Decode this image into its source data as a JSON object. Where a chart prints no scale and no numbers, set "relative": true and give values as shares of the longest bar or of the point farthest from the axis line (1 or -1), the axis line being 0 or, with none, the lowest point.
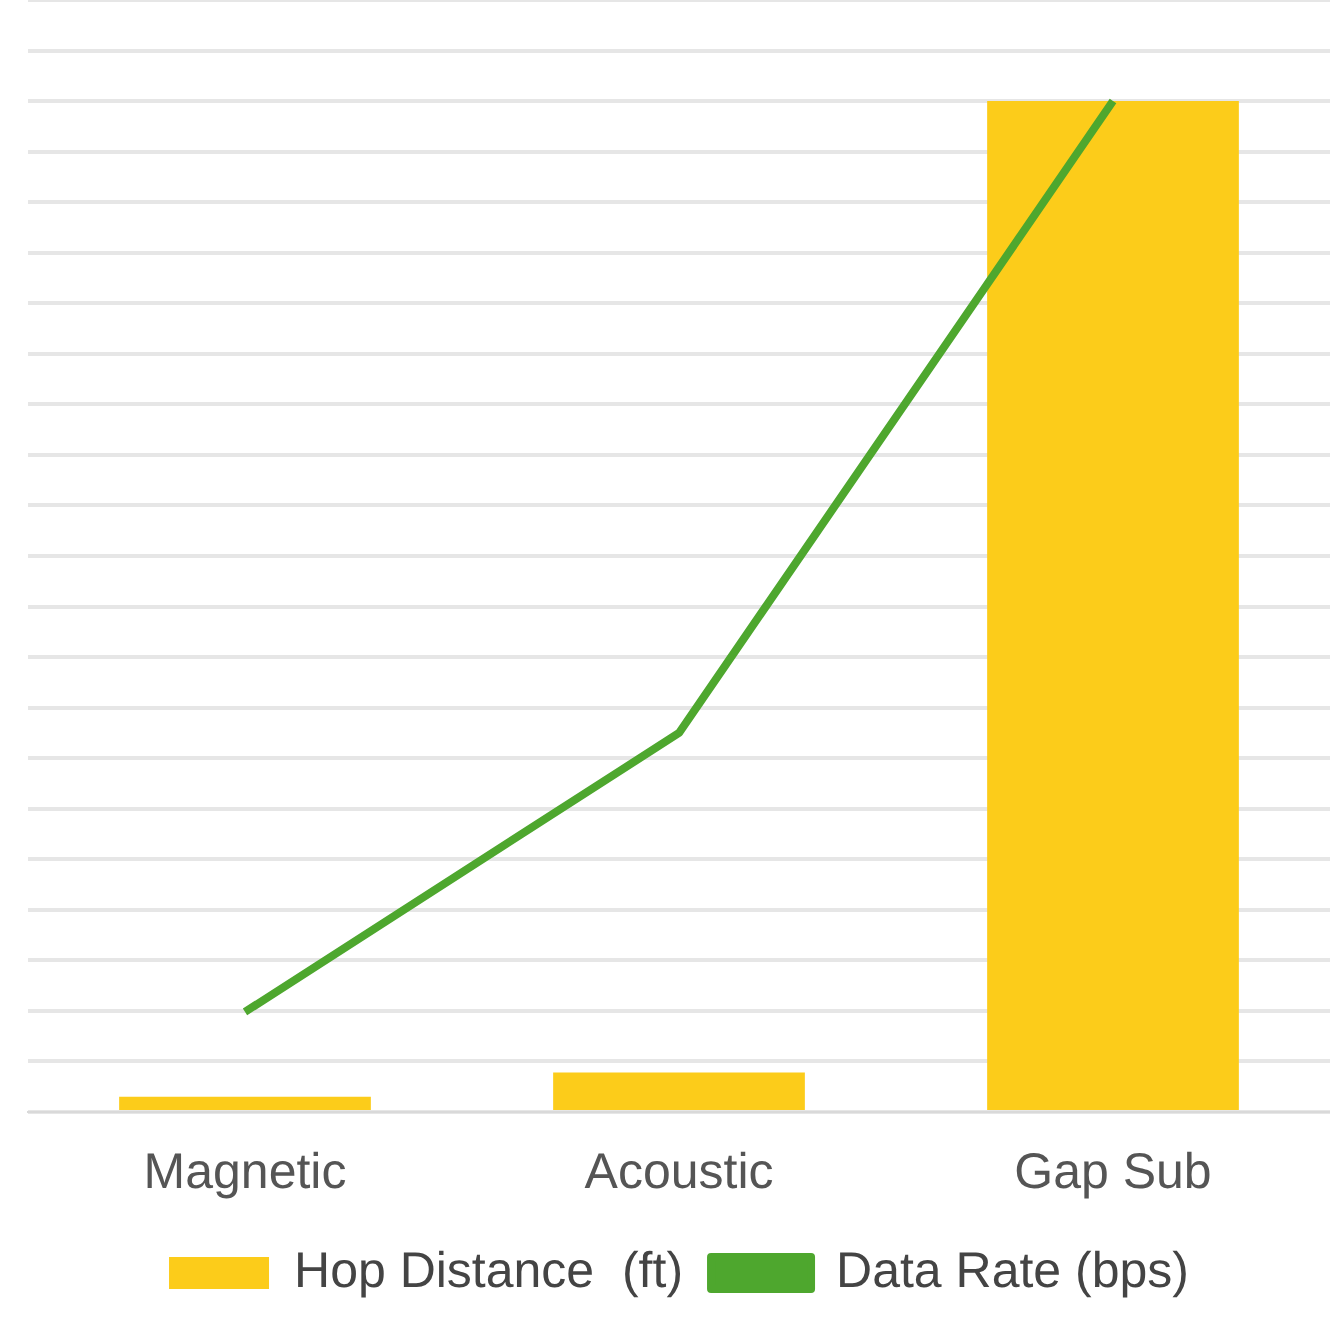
{
  "chart_data": {
    "type": "bar",
    "relative": true,
    "categories": [
      "Magnetic",
      "Acoustic",
      "Gap Sub"
    ],
    "series": [
      {
        "name": "Hop Distance  (ft)",
        "color": "#fccc1a",
        "values": [
          0.015,
          0.039,
          1
        ]
      },
      {
        "name": "Data Rate (bps)",
        "type": "line",
        "color": "#4ea72e",
        "values": [
          0.099,
          0.375,
          1
        ]
      }
    ],
    "grid": "y",
    "legend": "bottom",
    "marker": "none"
  }
}
